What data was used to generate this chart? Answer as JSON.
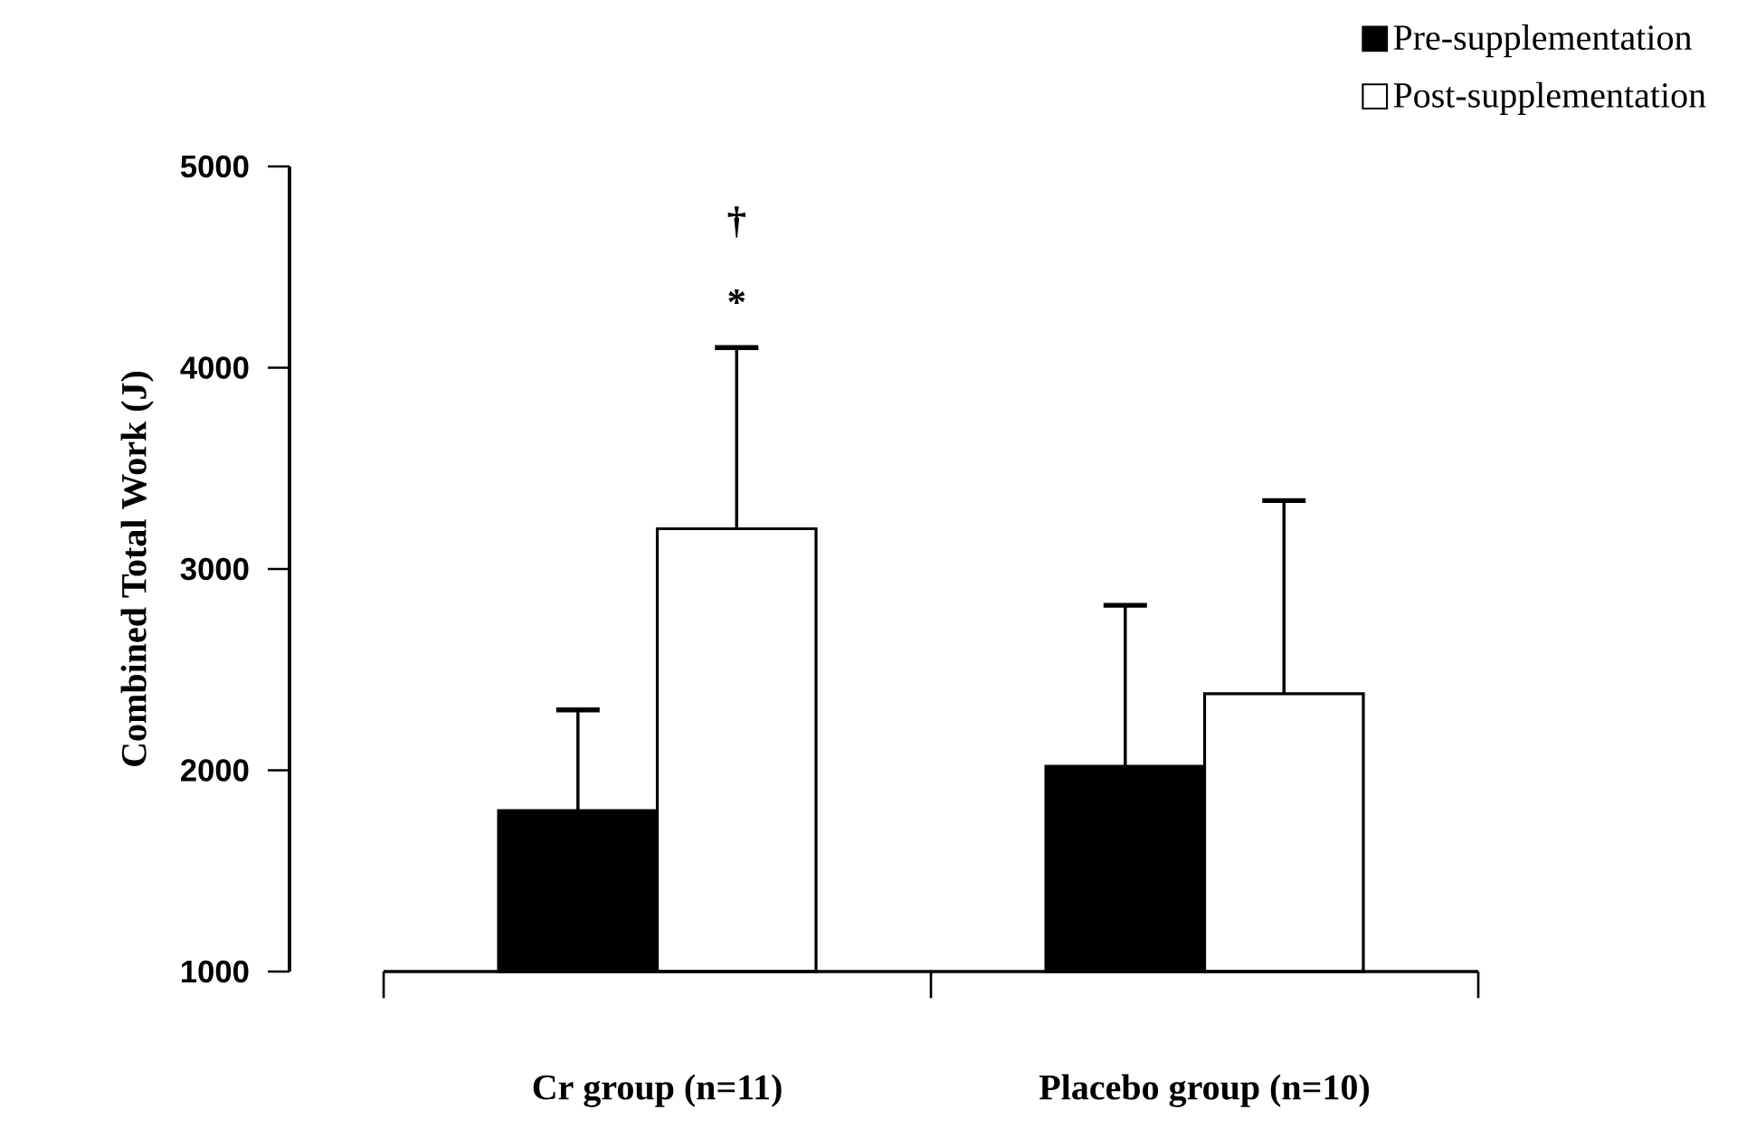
{
  "chart_data": {
    "type": "bar",
    "ylabel": "Combined Total Work (J)",
    "categories": [
      "Cr group (n=11)",
      "Placebo group (n=10)"
    ],
    "series": [
      {
        "name": "Pre-supplementation",
        "color": "#000000",
        "values": [
          1800,
          2020
        ],
        "errors": [
          [
            1800,
            2300
          ],
          [
            2020,
            2820
          ]
        ]
      },
      {
        "name": "Post-supplementation",
        "color": "#ffffff",
        "values": [
          3200,
          2380
        ],
        "errors": [
          [
            3200,
            4100
          ],
          [
            2380,
            3340
          ]
        ]
      }
    ],
    "ylim": [
      1000,
      5000
    ],
    "yticks": [
      1000,
      2000,
      3000,
      4000,
      5000
    ],
    "annotations": [
      "*",
      "†"
    ],
    "legend": "top right",
    "grid": false
  }
}
